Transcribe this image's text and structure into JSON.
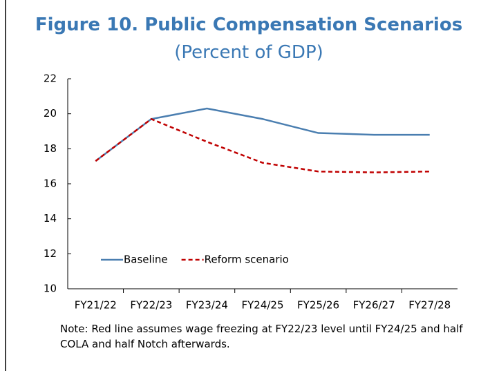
{
  "chart_data": {
    "type": "line",
    "title": "Figure 10. Public Compensation Scenarios",
    "subtitle": "(Percent of GDP)",
    "categories": [
      "FY21/22",
      "FY22/23",
      "FY23/24",
      "FY24/25",
      "FY25/26",
      "FY26/27",
      "FY27/28"
    ],
    "series": [
      {
        "name": "Baseline",
        "color": "#4a7eb0",
        "dash": "solid",
        "values": [
          17.3,
          19.7,
          20.3,
          19.7,
          18.9,
          18.8,
          18.8
        ]
      },
      {
        "name": "Reform scenario",
        "color": "#c00000",
        "dash": "dashed",
        "values": [
          17.3,
          19.7,
          18.4,
          17.2,
          16.7,
          16.65,
          16.7
        ]
      }
    ],
    "ylim": [
      10,
      22
    ],
    "yticks": [
      10,
      12,
      14,
      16,
      18,
      20,
      22
    ],
    "grid": false,
    "legend": "lower left",
    "note": "Note: Red line assumes wage freezing at FY22/23 level until FY24/25 and half COLA and half Notch afterwards."
  }
}
